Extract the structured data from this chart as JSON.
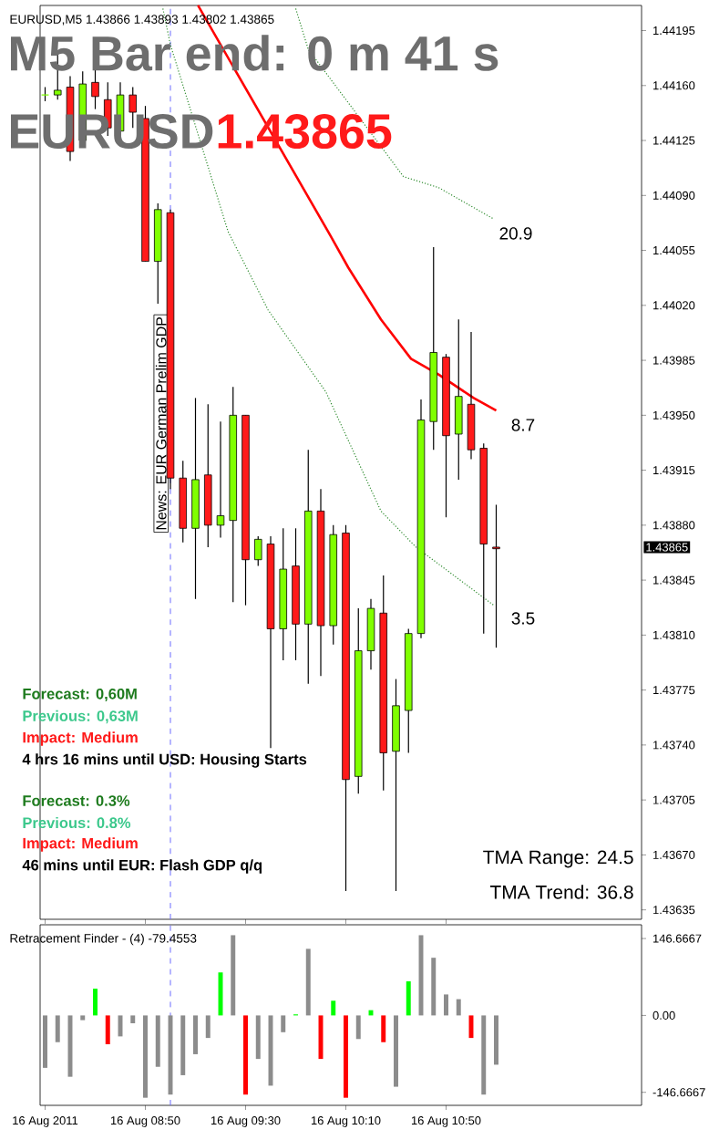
{
  "chart_data": [
    {
      "type": "candlestick",
      "title": "EURUSD,M5 1.43866 1.43893 1.43802 1.43865",
      "xlim": [
        "2011-08-16T08:08",
        "2011-08-16T12:08"
      ],
      "ylim": [
        1.43629,
        1.44211
      ],
      "yticks": [
        1.44195,
        {
          "value": 1.4416,
          "label": "1.44160"
        },
        1.44125,
        {
          "value": 1.4409,
          "label": "1.44090"
        },
        1.44055,
        {
          "value": 1.4402,
          "label": "1.44020"
        },
        1.43985,
        {
          "value": 1.4395,
          "label": "1.43950"
        },
        1.43915,
        {
          "value": 1.4388,
          "label": "1.43880"
        },
        1.43845,
        {
          "value": 1.4381,
          "label": "1.43810"
        },
        1.43775,
        {
          "value": 1.4374,
          "label": "1.43740"
        },
        1.43705,
        {
          "value": 1.4367,
          "label": "1.43670"
        },
        1.43635
      ],
      "tick_labels": "y",
      "xticks": [
        {
          "value": "2011-08-16T08:10",
          "label": null
        },
        {
          "value": "2011-08-16T08:50",
          "label": null
        },
        {
          "value": "2011-08-16T09:30",
          "label": null
        },
        {
          "value": "2011-08-16T10:10",
          "label": null
        },
        {
          "value": "2011-08-16T10:50",
          "label": null
        }
      ],
      "series": [
        {
          "type": "line",
          "color": "#ff0000",
          "line_style": "solid",
          "x": [
            "2011-08-16T09:11",
            "2011-08-16T10:04",
            "2011-08-16T10:11",
            "2011-08-16T10:24",
            "2011-08-16T10:36",
            "2011-08-16T10:47",
            "2011-08-16T11:01",
            "2011-08-16T11:10"
          ],
          "values": [
            1.44211,
            1.44064,
            1.44044,
            1.44011,
            1.43986,
            1.43976,
            1.43961,
            1.43953
          ]
        },
        {
          "type": "line",
          "color": "#2e8b2e",
          "line_style": "dotted",
          "x": [
            "2011-08-16T09:50",
            "2011-08-16T09:55",
            "2011-08-16T10:11",
            "2011-08-16T10:33",
            "2011-08-16T10:47",
            "2011-08-16T11:09"
          ],
          "values": [
            1.44209,
            1.44183,
            1.44149,
            1.44102,
            1.44095,
            1.44075
          ]
        },
        {
          "type": "line",
          "color": "#2e8b2e",
          "line_style": "dotted",
          "x": [
            "2011-08-16T08:57",
            "2011-08-16T09:00",
            "2011-08-16T09:23",
            "2011-08-16T09:39",
            "2011-08-16T10:02",
            "2011-08-16T10:24",
            "2011-08-16T10:38",
            "2011-08-16T11:09"
          ],
          "values": [
            1.44209,
            1.44186,
            1.44067,
            1.44017,
            1.43965,
            1.43889,
            1.43866,
            1.43829
          ]
        },
        {
          "type": "candlestick",
          "x": [
            "2011-08-16T08:10",
            "2011-08-16T08:15",
            "2011-08-16T08:20",
            "2011-08-16T08:25",
            "2011-08-16T08:30",
            "2011-08-16T08:35",
            "2011-08-16T08:40",
            "2011-08-16T08:45",
            "2011-08-16T08:50",
            "2011-08-16T08:55",
            "2011-08-16T09:00",
            "2011-08-16T09:05",
            "2011-08-16T09:10",
            "2011-08-16T09:15",
            "2011-08-16T09:20",
            "2011-08-16T09:25",
            "2011-08-16T09:30",
            "2011-08-16T09:35",
            "2011-08-16T09:40",
            "2011-08-16T09:45",
            "2011-08-16T09:50",
            "2011-08-16T09:55",
            "2011-08-16T10:00",
            "2011-08-16T10:05",
            "2011-08-16T10:10",
            "2011-08-16T10:15",
            "2011-08-16T10:20",
            "2011-08-16T10:25",
            "2011-08-16T10:30",
            "2011-08-16T10:35",
            "2011-08-16T10:40",
            "2011-08-16T10:45",
            "2011-08-16T10:50",
            "2011-08-16T10:55",
            "2011-08-16T11:00",
            "2011-08-16T11:05",
            "2011-08-16T11:10"
          ],
          "ohlc": [
            [
              1.44154,
              1.44159,
              1.4415,
              1.44154
            ],
            [
              1.44154,
              1.44182,
              1.44151,
              1.44157
            ],
            [
              1.44159,
              1.44166,
              1.44112,
              1.44118
            ],
            [
              1.44125,
              1.44169,
              1.44122,
              1.44161
            ],
            [
              1.44162,
              1.44178,
              1.44145,
              1.44153
            ],
            [
              1.44151,
              1.44162,
              1.44128,
              1.44133
            ],
            [
              1.44131,
              1.44162,
              1.44128,
              1.44154
            ],
            [
              1.44154,
              1.44159,
              1.44133,
              1.44143
            ],
            [
              1.44139,
              1.44147,
              1.44048,
              1.44048
            ],
            [
              1.44048,
              1.44085,
              1.44021,
              1.44081
            ],
            [
              1.44079,
              1.44081,
              1.43903,
              1.4391
            ],
            [
              1.4391,
              1.43921,
              1.43869,
              1.43878
            ],
            [
              1.43878,
              1.43961,
              1.43833,
              1.43909
            ],
            [
              1.43912,
              1.43957,
              1.43866,
              1.4388
            ],
            [
              1.4388,
              1.43946,
              1.43872,
              1.43886
            ],
            [
              1.43883,
              1.43968,
              1.43831,
              1.4395
            ],
            [
              1.4395,
              1.4395,
              1.43829,
              1.43858
            ],
            [
              1.43858,
              1.43873,
              1.43854,
              1.43871
            ],
            [
              1.43868,
              1.43873,
              1.43738,
              1.43814
            ],
            [
              1.43814,
              1.43878,
              1.43794,
              1.43852
            ],
            [
              1.43854,
              1.43878,
              1.43794,
              1.43817
            ],
            [
              1.43817,
              1.43928,
              1.43779,
              1.43889
            ],
            [
              1.43889,
              1.43903,
              1.43784,
              1.43816
            ],
            [
              1.43816,
              1.4388,
              1.43804,
              1.43874
            ],
            [
              1.43875,
              1.4388,
              1.43647,
              1.43718
            ],
            [
              1.4372,
              1.43827,
              1.43709,
              1.438
            ],
            [
              1.438,
              1.43833,
              1.43788,
              1.43827
            ],
            [
              1.43824,
              1.43848,
              1.43711,
              1.43735
            ],
            [
              1.43736,
              1.43782,
              1.43647,
              1.43765
            ],
            [
              1.43762,
              1.43814,
              1.43735,
              1.43811
            ],
            [
              1.43811,
              1.4396,
              1.43808,
              1.43947
            ],
            [
              1.43946,
              1.44057,
              1.43928,
              1.4399
            ],
            [
              1.43987,
              1.43989,
              1.43885,
              1.43937
            ],
            [
              1.43938,
              1.44011,
              1.43909,
              1.43962
            ],
            [
              1.43957,
              1.44003,
              1.43922,
              1.43928
            ],
            [
              1.43929,
              1.43932,
              1.43811,
              1.43868
            ],
            [
              1.43866,
              1.43893,
              1.43802,
              1.43865
            ]
          ],
          "colors": [
            "#80ff00",
            "#80ff00",
            "#ff1a1a",
            "#80ff00",
            "#ff1a1a",
            "#ff1a1a",
            "#80ff00",
            "#ff1a1a",
            "#ff1a1a",
            "#80ff00",
            "#ff1a1a",
            "#ff1a1a",
            "#80ff00",
            "#ff1a1a",
            "#80ff00",
            "#80ff00",
            "#ff1a1a",
            "#80ff00",
            "#ff1a1a",
            "#80ff00",
            "#ff1a1a",
            "#80ff00",
            "#ff1a1a",
            "#80ff00",
            "#ff1a1a",
            "#80ff00",
            "#80ff00",
            "#ff1a1a",
            "#80ff00",
            "#80ff00",
            "#80ff00",
            "#80ff00",
            "#ff1a1a",
            "#80ff00",
            "#ff1a1a",
            "#ff1a1a",
            "#ff1a1a"
          ]
        }
      ],
      "ref_lines": [
        {
          "axis": "x",
          "value": "2011-08-16T09:00",
          "label": "News: EUR German Prelim GDP",
          "color": "#6b6bff",
          "line_style": "dashed"
        }
      ],
      "annotations": [
        "M5 Bar end: 0 m 41 s",
        "EURUSD",
        "1.43865",
        "20.9",
        "8.7",
        "3.5",
        "Forecast: 0,60M",
        "Previous: 0,63M",
        "Impact: Medium",
        "4 hrs 16 mins until USD: Housing Starts",
        "Forecast: 0.3%",
        "Previous: 0.8%",
        "Impact: Medium",
        "46 mins until EUR: Flash GDP q/q",
        "TMA Range: 24.5",
        "TMA Trend: 36.8",
        "1.43865"
      ]
    },
    {
      "type": "bar",
      "title": "Retracement Finder - (4) -79.4553",
      "xlim": [
        "2011-08-16T08:08",
        "2011-08-16T12:08"
      ],
      "xticks": [
        {
          "value": "2011-08-16T08:10",
          "label": "16 Aug 2011"
        },
        {
          "value": "2011-08-16T08:50",
          "label": "16 Aug 08:50"
        },
        {
          "value": "2011-08-16T09:30",
          "label": "16 Aug 09:30"
        },
        {
          "value": "2011-08-16T10:10",
          "label": "16 Aug 10:10"
        },
        {
          "value": "2011-08-16T10:50",
          "label": "16 Aug 10:50"
        }
      ],
      "ylim": [
        -171.5,
        172.9
      ],
      "yticks": [
        146.6667,
        {
          "value": 0,
          "label": "0.00"
        },
        {
          "value": -146.6667,
          "label": "-146.6667"
        }
      ],
      "x": [
        "2011-08-16T08:10",
        "2011-08-16T08:15",
        "2011-08-16T08:20",
        "2011-08-16T08:25",
        "2011-08-16T08:30",
        "2011-08-16T08:35",
        "2011-08-16T08:40",
        "2011-08-16T08:45",
        "2011-08-16T08:50",
        "2011-08-16T08:55",
        "2011-08-16T09:00",
        "2011-08-16T09:05",
        "2011-08-16T09:10",
        "2011-08-16T09:15",
        "2011-08-16T09:20",
        "2011-08-16T09:25",
        "2011-08-16T09:30",
        "2011-08-16T09:35",
        "2011-08-16T09:40",
        "2011-08-16T09:45",
        "2011-08-16T09:50",
        "2011-08-16T09:55",
        "2011-08-16T10:00",
        "2011-08-16T10:05",
        "2011-08-16T10:10",
        "2011-08-16T10:15",
        "2011-08-16T10:20",
        "2011-08-16T10:25",
        "2011-08-16T10:30",
        "2011-08-16T10:35",
        "2011-08-16T10:40",
        "2011-08-16T10:45",
        "2011-08-16T10:50",
        "2011-08-16T10:55",
        "2011-08-16T11:00",
        "2011-08-16T11:05",
        "2011-08-16T11:10"
      ],
      "values": [
        -100,
        -51,
        -117,
        -9,
        51,
        -55,
        -40,
        -15,
        -157,
        -98,
        -151,
        -114,
        -74,
        -43,
        82,
        153,
        -151,
        -83,
        -134,
        -32,
        2,
        127,
        -83,
        28,
        -157,
        -45,
        10,
        -51,
        -136,
        65,
        153,
        110,
        40,
        31,
        -43,
        -151,
        -94
      ],
      "colors": [
        "#8c8c8c",
        "#8c8c8c",
        "#8c8c8c",
        "#8c8c8c",
        "#00ff00",
        "#ff0000",
        "#8c8c8c",
        "#8c8c8c",
        "#8c8c8c",
        "#8c8c8c",
        "#8c8c8c",
        "#8c8c8c",
        "#8c8c8c",
        "#8c8c8c",
        "#00ff00",
        "#8c8c8c",
        "#ff0000",
        "#8c8c8c",
        "#8c8c8c",
        "#8c8c8c",
        "#00ff00",
        "#8c8c8c",
        "#ff0000",
        "#00ff00",
        "#ff0000",
        "#8c8c8c",
        "#00ff00",
        "#ff0000",
        "#8c8c8c",
        "#00ff00",
        "#8c8c8c",
        "#8c8c8c",
        "#8c8c8c",
        "#8c8c8c",
        "#ff0000",
        "#8c8c8c",
        "#8c8c8c"
      ],
      "ref_lines": [
        {
          "axis": "x",
          "value": "2011-08-16T09:00",
          "color": "#6b6bff",
          "line_style": "dashed"
        }
      ]
    }
  ]
}
